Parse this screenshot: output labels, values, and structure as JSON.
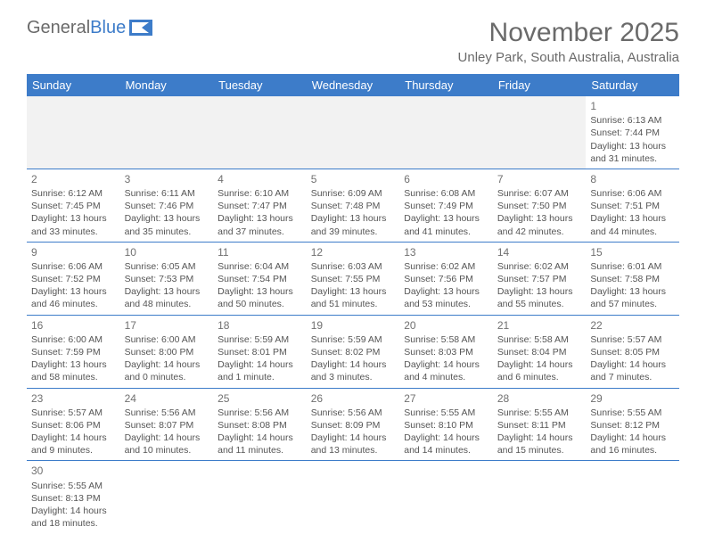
{
  "logo": {
    "word1": "General",
    "word2": "Blue"
  },
  "title": "November 2025",
  "location": "Unley Park, South Australia, Australia",
  "colors": {
    "header_bg": "#3d7cc9",
    "header_text": "#ffffff",
    "text": "#555555",
    "title_text": "#6a6a6a",
    "border": "#3d7cc9",
    "blank_bg": "#f2f2f2"
  },
  "weekdays": [
    "Sunday",
    "Monday",
    "Tuesday",
    "Wednesday",
    "Thursday",
    "Friday",
    "Saturday"
  ],
  "weeks": [
    [
      null,
      null,
      null,
      null,
      null,
      null,
      {
        "n": "1",
        "sr": "Sunrise: 6:13 AM",
        "ss": "Sunset: 7:44 PM",
        "dl": "Daylight: 13 hours and 31 minutes."
      }
    ],
    [
      {
        "n": "2",
        "sr": "Sunrise: 6:12 AM",
        "ss": "Sunset: 7:45 PM",
        "dl": "Daylight: 13 hours and 33 minutes."
      },
      {
        "n": "3",
        "sr": "Sunrise: 6:11 AM",
        "ss": "Sunset: 7:46 PM",
        "dl": "Daylight: 13 hours and 35 minutes."
      },
      {
        "n": "4",
        "sr": "Sunrise: 6:10 AM",
        "ss": "Sunset: 7:47 PM",
        "dl": "Daylight: 13 hours and 37 minutes."
      },
      {
        "n": "5",
        "sr": "Sunrise: 6:09 AM",
        "ss": "Sunset: 7:48 PM",
        "dl": "Daylight: 13 hours and 39 minutes."
      },
      {
        "n": "6",
        "sr": "Sunrise: 6:08 AM",
        "ss": "Sunset: 7:49 PM",
        "dl": "Daylight: 13 hours and 41 minutes."
      },
      {
        "n": "7",
        "sr": "Sunrise: 6:07 AM",
        "ss": "Sunset: 7:50 PM",
        "dl": "Daylight: 13 hours and 42 minutes."
      },
      {
        "n": "8",
        "sr": "Sunrise: 6:06 AM",
        "ss": "Sunset: 7:51 PM",
        "dl": "Daylight: 13 hours and 44 minutes."
      }
    ],
    [
      {
        "n": "9",
        "sr": "Sunrise: 6:06 AM",
        "ss": "Sunset: 7:52 PM",
        "dl": "Daylight: 13 hours and 46 minutes."
      },
      {
        "n": "10",
        "sr": "Sunrise: 6:05 AM",
        "ss": "Sunset: 7:53 PM",
        "dl": "Daylight: 13 hours and 48 minutes."
      },
      {
        "n": "11",
        "sr": "Sunrise: 6:04 AM",
        "ss": "Sunset: 7:54 PM",
        "dl": "Daylight: 13 hours and 50 minutes."
      },
      {
        "n": "12",
        "sr": "Sunrise: 6:03 AM",
        "ss": "Sunset: 7:55 PM",
        "dl": "Daylight: 13 hours and 51 minutes."
      },
      {
        "n": "13",
        "sr": "Sunrise: 6:02 AM",
        "ss": "Sunset: 7:56 PM",
        "dl": "Daylight: 13 hours and 53 minutes."
      },
      {
        "n": "14",
        "sr": "Sunrise: 6:02 AM",
        "ss": "Sunset: 7:57 PM",
        "dl": "Daylight: 13 hours and 55 minutes."
      },
      {
        "n": "15",
        "sr": "Sunrise: 6:01 AM",
        "ss": "Sunset: 7:58 PM",
        "dl": "Daylight: 13 hours and 57 minutes."
      }
    ],
    [
      {
        "n": "16",
        "sr": "Sunrise: 6:00 AM",
        "ss": "Sunset: 7:59 PM",
        "dl": "Daylight: 13 hours and 58 minutes."
      },
      {
        "n": "17",
        "sr": "Sunrise: 6:00 AM",
        "ss": "Sunset: 8:00 PM",
        "dl": "Daylight: 14 hours and 0 minutes."
      },
      {
        "n": "18",
        "sr": "Sunrise: 5:59 AM",
        "ss": "Sunset: 8:01 PM",
        "dl": "Daylight: 14 hours and 1 minute."
      },
      {
        "n": "19",
        "sr": "Sunrise: 5:59 AM",
        "ss": "Sunset: 8:02 PM",
        "dl": "Daylight: 14 hours and 3 minutes."
      },
      {
        "n": "20",
        "sr": "Sunrise: 5:58 AM",
        "ss": "Sunset: 8:03 PM",
        "dl": "Daylight: 14 hours and 4 minutes."
      },
      {
        "n": "21",
        "sr": "Sunrise: 5:58 AM",
        "ss": "Sunset: 8:04 PM",
        "dl": "Daylight: 14 hours and 6 minutes."
      },
      {
        "n": "22",
        "sr": "Sunrise: 5:57 AM",
        "ss": "Sunset: 8:05 PM",
        "dl": "Daylight: 14 hours and 7 minutes."
      }
    ],
    [
      {
        "n": "23",
        "sr": "Sunrise: 5:57 AM",
        "ss": "Sunset: 8:06 PM",
        "dl": "Daylight: 14 hours and 9 minutes."
      },
      {
        "n": "24",
        "sr": "Sunrise: 5:56 AM",
        "ss": "Sunset: 8:07 PM",
        "dl": "Daylight: 14 hours and 10 minutes."
      },
      {
        "n": "25",
        "sr": "Sunrise: 5:56 AM",
        "ss": "Sunset: 8:08 PM",
        "dl": "Daylight: 14 hours and 11 minutes."
      },
      {
        "n": "26",
        "sr": "Sunrise: 5:56 AM",
        "ss": "Sunset: 8:09 PM",
        "dl": "Daylight: 14 hours and 13 minutes."
      },
      {
        "n": "27",
        "sr": "Sunrise: 5:55 AM",
        "ss": "Sunset: 8:10 PM",
        "dl": "Daylight: 14 hours and 14 minutes."
      },
      {
        "n": "28",
        "sr": "Sunrise: 5:55 AM",
        "ss": "Sunset: 8:11 PM",
        "dl": "Daylight: 14 hours and 15 minutes."
      },
      {
        "n": "29",
        "sr": "Sunrise: 5:55 AM",
        "ss": "Sunset: 8:12 PM",
        "dl": "Daylight: 14 hours and 16 minutes."
      }
    ],
    [
      {
        "n": "30",
        "sr": "Sunrise: 5:55 AM",
        "ss": "Sunset: 8:13 PM",
        "dl": "Daylight: 14 hours and 18 minutes."
      },
      null,
      null,
      null,
      null,
      null,
      null
    ]
  ]
}
